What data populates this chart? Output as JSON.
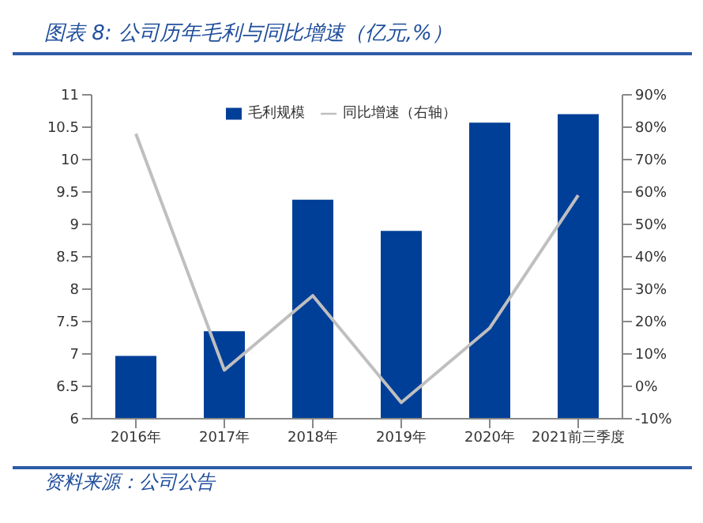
{
  "chart_data": {
    "type": "bar",
    "title": "图表 8:  公司历年毛利与同比增速（亿元,%）",
    "categories": [
      "2016年",
      "2017年",
      "2018年",
      "2019年",
      "2020年",
      "2021前三季度"
    ],
    "series": [
      {
        "name": "毛利规模",
        "color": "#003f98",
        "values": [
          6.97,
          7.35,
          9.38,
          8.9,
          10.57,
          10.7
        ]
      },
      {
        "name": "同比增速（右轴）",
        "type": "line",
        "axis": "y2",
        "color": "#bfbfbf",
        "values": [
          78,
          5,
          28,
          -5,
          18,
          59
        ]
      }
    ],
    "ylim": [
      6,
      11
    ],
    "yticks": [
      6,
      6.5,
      7,
      7.5,
      8,
      8.5,
      9,
      9.5,
      10,
      10.5,
      11
    ],
    "y2lim": [
      -10,
      90
    ],
    "y2ticks": [
      {
        "value": -10,
        "label": "-10%"
      },
      {
        "value": 0,
        "label": "0%"
      },
      {
        "value": 10,
        "label": "10%"
      },
      {
        "value": 20,
        "label": "20%"
      },
      {
        "value": 30,
        "label": "30%"
      },
      {
        "value": 40,
        "label": "40%"
      },
      {
        "value": 50,
        "label": "50%"
      },
      {
        "value": 60,
        "label": "60%"
      },
      {
        "value": 70,
        "label": "70%"
      },
      {
        "value": 80,
        "label": "80%"
      },
      {
        "value": 90,
        "label": "90%"
      }
    ],
    "legend": "top",
    "grid": false,
    "marker": "none",
    "annotations": [
      "资料来源：公司公告"
    ]
  }
}
